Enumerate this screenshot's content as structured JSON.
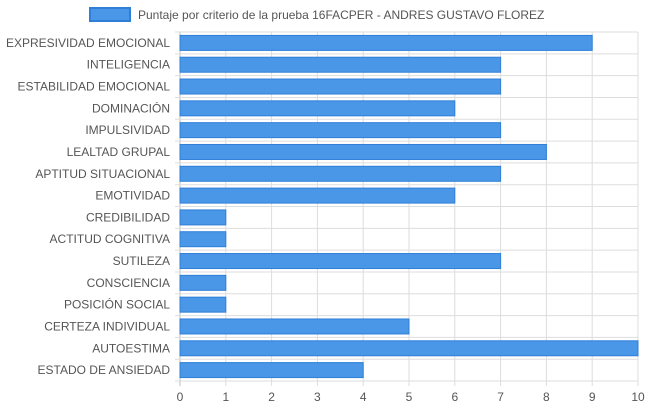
{
  "chart_data": {
    "type": "bar",
    "orientation": "horizontal",
    "legend": {
      "position": "top",
      "entries": [
        "Puntaje por criterio de la prueba 16FACPER - ANDRES GUSTAVO FLOREZ"
      ]
    },
    "categories": [
      "EXPRESIVIDAD EMOCIONAL",
      "INTELIGENCIA",
      "ESTABILIDAD EMOCIONAL",
      "DOMINACIÓN",
      "IMPULSIVIDAD",
      "LEALTAD GRUPAL",
      "APTITUD SITUACIONAL",
      "EMOTIVIDAD",
      "CREDIBILIDAD",
      "ACTITUD COGNITIVA",
      "SUTILEZA",
      "CONSCIENCIA",
      "POSICIÓN SOCIAL",
      "CERTEZA INDIVIDUAL",
      "AUTOESTIMA",
      "ESTADO DE ANSIEDAD"
    ],
    "series": [
      {
        "name": "Puntaje por criterio de la prueba 16FACPER - ANDRES GUSTAVO FLOREZ",
        "values": [
          9,
          7,
          7,
          6,
          7,
          8,
          7,
          6,
          1,
          1,
          7,
          1,
          1,
          5,
          10,
          4
        ]
      }
    ],
    "xlim": [
      0,
      10
    ],
    "xticks": [
      "0",
      "1",
      "2",
      "3",
      "4",
      "5",
      "6",
      "7",
      "8",
      "9",
      "10"
    ],
    "grid": true,
    "colors": {
      "bar_fill": "#4a97e8",
      "bar_stroke": "#2f7fd8",
      "grid": "#dddddd"
    }
  }
}
